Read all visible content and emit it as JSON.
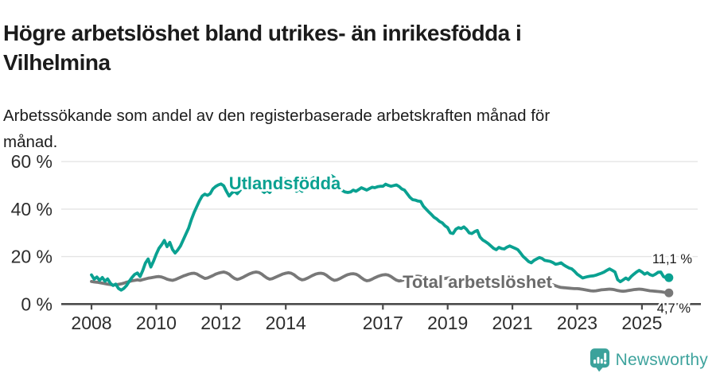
{
  "header": {
    "title": "Högre arbetslöshet bland utrikes- än inrikesfödda i\nVilhelmina",
    "subtitle": "Arbetssökande som andel av den registerbaserade arbetskraften månad för\nmånad."
  },
  "chart_data": {
    "type": "line",
    "x_axis": {
      "unit": "year",
      "start_year": 2008,
      "interval": "monthly",
      "tick_years": [
        2008,
        2010,
        2012,
        2014,
        2017,
        2019,
        2021,
        2023,
        2025
      ]
    },
    "y_axis": {
      "unit": "percent",
      "range": [
        0,
        65
      ],
      "grid": true,
      "ticks": [
        {
          "value": 0,
          "label": "0 %"
        },
        {
          "value": 20,
          "label": "20 %"
        },
        {
          "value": 40,
          "label": "40 %"
        },
        {
          "value": 60,
          "label": "60 %"
        }
      ]
    },
    "series": [
      {
        "name": "Utlandsfödda",
        "color": "#0aa191",
        "end_label": "11,1 %",
        "end_value": 11.1,
        "values": [
          12.3,
          10.5,
          11.4,
          10.0,
          11.2,
          9.6,
          10.6,
          8.8,
          7.8,
          8.4,
          6.6,
          5.9,
          6.6,
          7.8,
          9.6,
          11.2,
          12.5,
          13.1,
          11.6,
          14.1,
          17.3,
          19.0,
          15.6,
          18.1,
          21.0,
          23.5,
          25.0,
          26.8,
          24.2,
          26.0,
          23.0,
          21.5,
          22.8,
          24.5,
          27.0,
          29.5,
          32.0,
          35.5,
          38.5,
          41.0,
          43.5,
          45.5,
          46.3,
          45.8,
          46.5,
          48.5,
          49.5,
          50.2,
          50.6,
          49.8,
          47.5,
          45.5,
          46.8,
          47.5,
          46.5,
          47.8,
          49.0,
          50.0,
          51.0,
          51.5,
          52.0,
          51.0,
          49.5,
          48.0,
          47.0,
          48.0,
          47.0,
          48.5,
          50.0,
          51.5,
          52.5,
          53.0,
          52.5,
          51.5,
          50.0,
          48.5,
          47.5,
          48.5,
          47.5,
          49.0,
          50.5,
          52.0,
          53.0,
          53.5,
          53.0,
          52.0,
          51.0,
          52.0,
          53.5,
          54.0,
          53.2,
          50.5,
          48.5,
          47.8,
          47.2,
          47.0,
          47.2,
          48.0,
          47.5,
          48.2,
          49.0,
          48.5,
          48.0,
          48.6,
          49.2,
          49.0,
          49.4,
          49.6,
          49.6,
          50.5,
          50.0,
          49.6,
          49.9,
          50.2,
          49.5,
          48.5,
          48.0,
          46.5,
          45.0,
          44.0,
          43.8,
          43.4,
          43.2,
          41.2,
          40.0,
          38.8,
          37.7,
          36.5,
          35.8,
          34.8,
          34.2,
          33.0,
          32.2,
          30.0,
          29.7,
          31.5,
          32.2,
          31.8,
          32.5,
          31.5,
          30.0,
          29.7,
          30.5,
          31.0,
          28.2,
          27.0,
          26.3,
          25.5,
          24.5,
          23.5,
          22.9,
          23.9,
          23.4,
          23.2,
          24.0,
          24.5,
          24.0,
          23.5,
          22.9,
          21.5,
          20.0,
          19.0,
          17.9,
          17.4,
          18.4,
          19.0,
          19.6,
          19.2,
          18.4,
          18.2,
          18.0,
          17.5,
          16.8,
          17.0,
          17.4,
          16.5,
          15.8,
          15.2,
          14.8,
          13.8,
          12.6,
          11.8,
          11.0,
          11.3,
          11.6,
          11.8,
          11.9,
          12.2,
          12.6,
          13.0,
          13.5,
          14.2,
          14.8,
          14.2,
          13.5,
          10.3,
          9.4,
          10.2,
          11.0,
          10.3,
          11.6,
          12.6,
          13.5,
          14.2,
          13.5,
          12.6,
          13.2,
          12.4,
          12.0,
          12.6,
          13.4,
          13.5,
          11.6,
          11.0,
          11.1
        ]
      },
      {
        "name": "Total arbetslöshet",
        "color": "#787878",
        "label_color": "#6b6b6b",
        "end_label": "4,7 %",
        "end_value": 4.7,
        "values": [
          9.5,
          9.3,
          9.2,
          9.0,
          8.8,
          8.6,
          8.4,
          8.2,
          8.0,
          8.1,
          8.3,
          8.5,
          8.8,
          9.2,
          9.5,
          9.8,
          10.0,
          10.2,
          10.0,
          10.3,
          10.6,
          10.9,
          11.1,
          11.3,
          11.5,
          11.6,
          11.4,
          11.0,
          10.5,
          10.2,
          10.0,
          10.3,
          10.8,
          11.3,
          11.8,
          12.2,
          12.6,
          12.9,
          13.0,
          12.7,
          12.0,
          11.4,
          10.8,
          11.0,
          11.5,
          12.0,
          12.6,
          13.0,
          13.3,
          13.5,
          13.2,
          12.6,
          11.6,
          10.8,
          10.4,
          10.7,
          11.2,
          11.8,
          12.4,
          12.9,
          13.3,
          13.5,
          13.3,
          12.7,
          11.8,
          11.0,
          10.5,
          10.7,
          11.2,
          11.7,
          12.2,
          12.7,
          13.0,
          13.2,
          13.0,
          12.4,
          11.5,
          10.7,
          10.2,
          10.4,
          10.9,
          11.5,
          12.1,
          12.6,
          12.9,
          13.0,
          12.8,
          12.2,
          11.3,
          10.5,
          10.0,
          10.2,
          10.7,
          11.3,
          11.9,
          12.4,
          12.7,
          12.8,
          12.6,
          12.0,
          11.1,
          10.3,
          9.8,
          10.0,
          10.5,
          11.1,
          11.6,
          12.0,
          12.3,
          12.4,
          12.2,
          11.6,
          10.8,
          10.1,
          9.7,
          9.9,
          10.3,
          10.8,
          11.2,
          11.5,
          11.7,
          11.8,
          11.6,
          11.0,
          10.2,
          9.5,
          9.1,
          9.3,
          9.7,
          10.1,
          10.5,
          10.8,
          11.0,
          11.1,
          10.9,
          10.4,
          9.7,
          9.1,
          8.8,
          9.0,
          9.3,
          9.6,
          9.9,
          10.1,
          10.3,
          10.4,
          10.2,
          9.8,
          9.3,
          8.9,
          8.6,
          8.8,
          9.0,
          9.2,
          9.4,
          9.5,
          9.6,
          9.6,
          9.4,
          9.0,
          8.6,
          8.2,
          7.9,
          8.0,
          8.2,
          8.4,
          8.6,
          8.7,
          8.8,
          8.7,
          8.5,
          8.1,
          7.7,
          7.3,
          7.0,
          6.9,
          6.8,
          6.7,
          6.6,
          6.5,
          6.5,
          6.4,
          6.2,
          6.0,
          5.8,
          5.6,
          5.5,
          5.6,
          5.8,
          6.0,
          6.1,
          6.2,
          6.3,
          6.2,
          6.0,
          5.7,
          5.5,
          5.4,
          5.5,
          5.7,
          5.9,
          6.1,
          6.2,
          6.3,
          6.2,
          6.0,
          5.8,
          5.6,
          5.5,
          5.4,
          5.3,
          5.2,
          5.0,
          4.8,
          4.7
        ]
      }
    ]
  },
  "footer": {
    "brand": "Newsworthy",
    "brand_color": "#3ea39d",
    "icon": "newsworthy-bar-chart-bubble-icon"
  }
}
